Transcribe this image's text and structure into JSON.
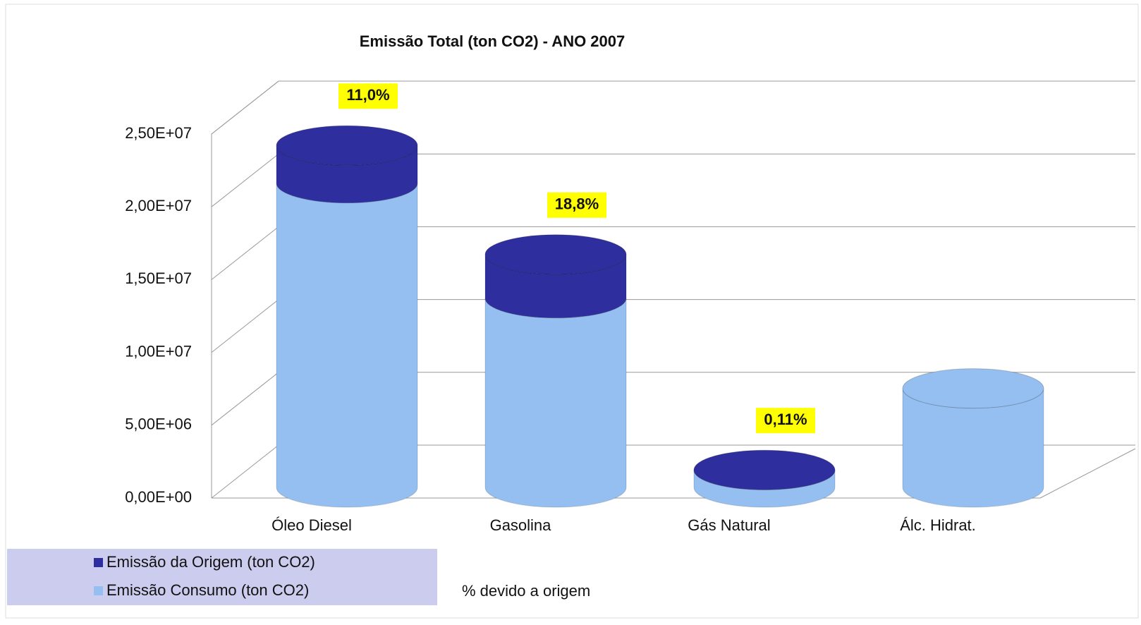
{
  "chart_data": {
    "type": "stacked-cylinder",
    "title": "Emissão Total (ton CO2) - ANO 2007",
    "categories": [
      "Óleo Diesel",
      "Gasolina",
      "Gás Natural",
      "Álc. Hidrat."
    ],
    "series": [
      {
        "name": "Emissão  Consumo (ton CO2)",
        "color": "#95bff0",
        "values": [
          20900000,
          13000000,
          1200000,
          6800000
        ]
      },
      {
        "name": "Emissão da Origem (ton CO2)",
        "color": "#2e2e9e",
        "values": [
          2585000,
          3000000,
          1300,
          0
        ]
      }
    ],
    "percent_labels": [
      "11,0%",
      "18,8%",
      "0,11%",
      null
    ],
    "percent_legend": "% devido a origem",
    "ylim": [
      0,
      25000000
    ],
    "yticks": [
      {
        "value": 0,
        "label": "0,00E+00"
      },
      {
        "value": 5000000,
        "label": "5,00E+06"
      },
      {
        "value": 10000000,
        "label": "1,00E+07"
      },
      {
        "value": 15000000,
        "label": "1,50E+07"
      },
      {
        "value": 20000000,
        "label": "2,00E+07"
      },
      {
        "value": 25000000,
        "label": "2,50E+07"
      }
    ],
    "grid": true
  }
}
